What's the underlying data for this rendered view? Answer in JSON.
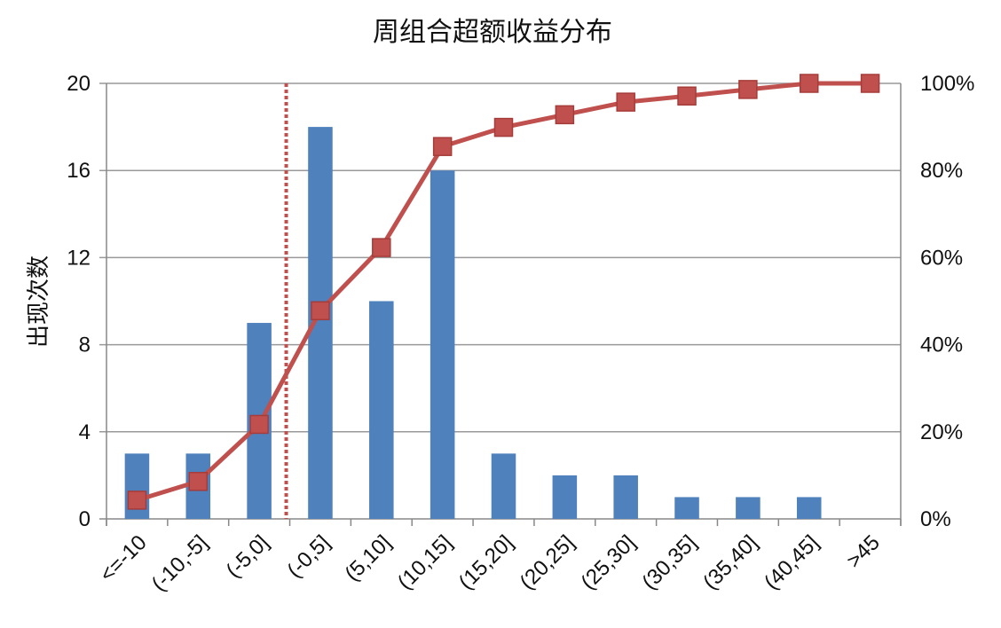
{
  "chart_data": {
    "type": "bar",
    "title": "周组合超额收益分布",
    "ylabel": "出现次数",
    "y2label": "",
    "categories": [
      "<=-10",
      "(-10,-5]",
      "(-5,0]",
      "(-0,5]",
      "(5,10]",
      "(10,15]",
      "(15,20]",
      "(20,25]",
      "(25,30]",
      "(30,35]",
      "(35,40]",
      "(40,45]",
      ">45"
    ],
    "ylim": [
      0,
      20
    ],
    "yticks": [
      0,
      4,
      8,
      12,
      16,
      20
    ],
    "y2lim": [
      0,
      100
    ],
    "y2ticks": [
      "0%",
      "20%",
      "40%",
      "60%",
      "80%",
      "100%"
    ],
    "grid": true,
    "series": [
      {
        "type": "bar",
        "values": [
          3,
          3,
          9,
          18,
          10,
          16,
          3,
          2,
          2,
          1,
          1,
          1,
          0
        ],
        "color": "#4f81bd"
      },
      {
        "type": "line",
        "axis": "right",
        "values": [
          4.3,
          8.6,
          21.7,
          47.8,
          62.3,
          85.5,
          89.9,
          92.8,
          95.7,
          97.1,
          98.6,
          100,
          100
        ],
        "color": "#c0504d",
        "marker": "square"
      }
    ],
    "reference_line": {
      "style": "dotted",
      "color": "#c0504d",
      "position": "between (-5,0] and (-0,5]"
    }
  }
}
